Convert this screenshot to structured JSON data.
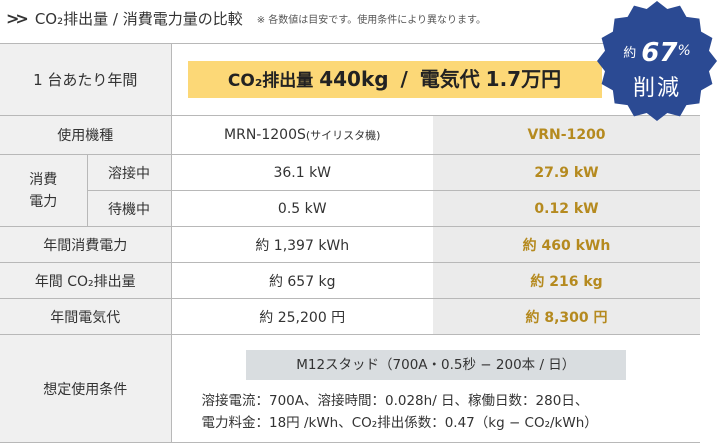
{
  "header": {
    "title": "CO₂排出量 / 消費電力量の比較",
    "note": "※ 各数値は目安です。使用条件により異なります。"
  },
  "badge": {
    "prefix": "約",
    "value": "67",
    "unit": "%",
    "label": "削減"
  },
  "summary": {
    "label": "1 台あたり年間",
    "co2_label": "CO₂排出量",
    "co2_value": "440kg",
    "separator": "/",
    "cost_label": "電気代",
    "cost_value": "1.7万円"
  },
  "table": {
    "model_label": "使用機種",
    "model_old": "MRN-1200S",
    "model_old_sub": "(サイリスタ機)",
    "model_new": "VRN-1200",
    "power_group": "消費\n電力",
    "rows": [
      {
        "label": "溶接中",
        "old": "36.1 kW",
        "new": "27.9 kW"
      },
      {
        "label": "待機中",
        "old": "0.5 kW",
        "new": "0.12 kW"
      }
    ],
    "annual_rows": [
      {
        "label": "年間消費電力",
        "old": "約 1,397 kWh",
        "new": "約 460 kWh"
      },
      {
        "label": "年間 CO₂排出量",
        "old": "約 657 kg",
        "new": "約 216 kg"
      },
      {
        "label": "年間電気代",
        "old": "約 25,200 円",
        "new": "約 8,300 円"
      }
    ],
    "conditions_label": "想定使用条件",
    "conditions_box": "M12スタッド（700A・0.5秒 − 200本 / 日）",
    "conditions_line1": "溶接電流：700A、溶接時間：0.028h/ 日、稼働日数：280日、",
    "conditions_line2": "電力料金：18円 /kWh、CO₂排出係数：0.47（kg − CO₂/kWh）"
  },
  "colors": {
    "accent_yellow": "#fcd877",
    "gold_text": "#b58a1f",
    "badge_blue": "#2b4a93"
  }
}
